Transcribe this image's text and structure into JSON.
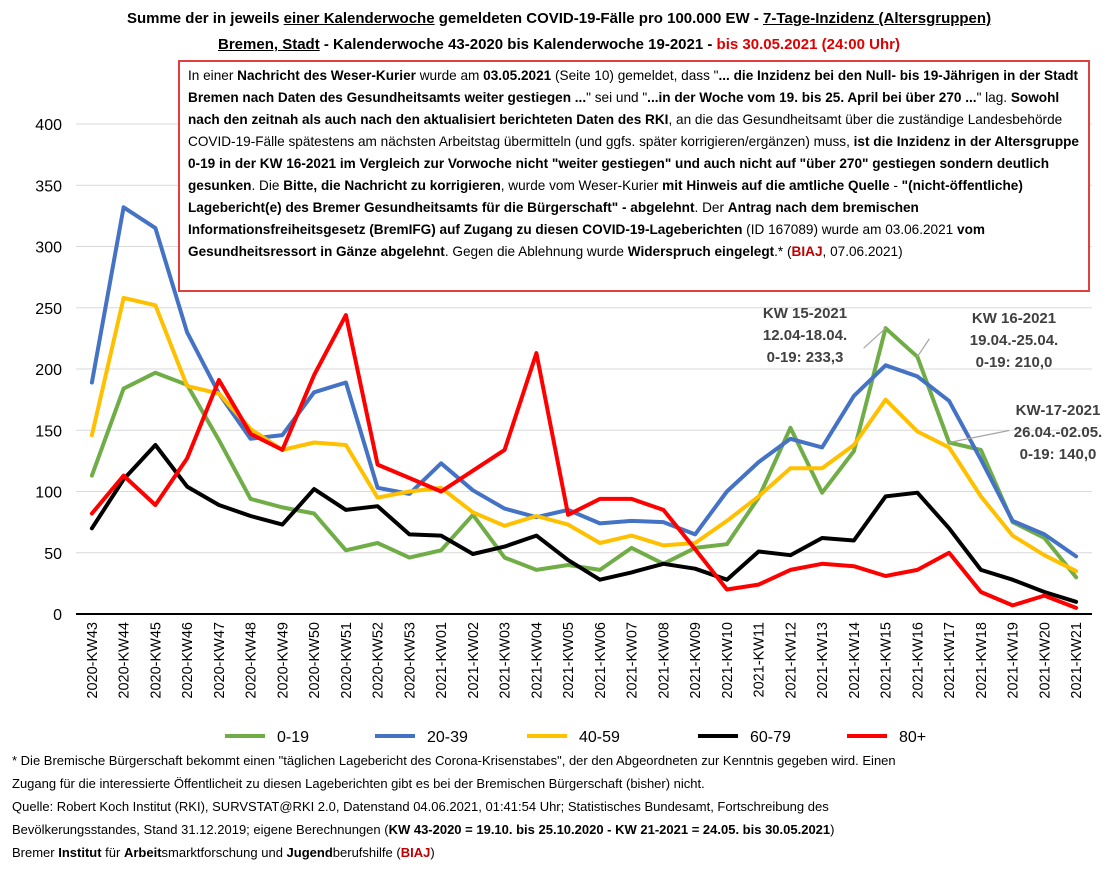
{
  "title": {
    "line1_a": "Summe der in jeweils ",
    "line1_b": "einer Kalenderwoche",
    "line1_c": " gemeldeten COVID-19-Fälle pro 100.000 EW - ",
    "line1_d": "7-Tage-Inzidenz (Altersgruppen)",
    "line2_a": "Bremen, Stadt",
    "line2_b": " -  Kalenderwoche 43-2020 bis Kalenderwoche 19-2021 - ",
    "line2_c": "bis 30.05.2021 (24:00 Uhr)"
  },
  "note": {
    "p01": "In einer  ",
    "p02": "Nachricht des Weser-Kurier",
    "p03": " wurde am ",
    "p04": "03.05.2021",
    "p05": " (Seite 10) gemeldet, dass \"",
    "p06": "... die Inzidenz bei den Null- bis 19-Jährigen in der Stadt Bremen nach Daten des Gesundheitsamts weiter gestiegen ...",
    "p07": "\" sei und \"",
    "p08": "...in der Woche vom 19. bis 25.  April bei über 270 ...",
    "p09": "\" lag. ",
    "p10": "Sowohl nach den zeitnah als auch nach den aktualisiert berichteten Daten des RKI",
    "p11": ", an die das Gesundheitsamt über die zuständige Landesbehörde COVID-19-Fälle spätestens am nächsten Arbeitstag übermitteln (und ggfs. später korrigieren/ergänzen) muss, ",
    "p12": "ist die Inzidenz in der Altersgruppe 0-19 in der KW 16-2021 im Vergleich  zur Vorwoche nicht \"weiter gestiegen\" und auch nicht auf \"über 270\" gestiegen sondern deutlich gesunken",
    "p13": ". Die ",
    "p14": "Bitte, die Nachricht zu korrigieren",
    "p15": ", wurde vom Weser-Kurier ",
    "p16": "mit Hinweis auf die amtliche Quelle",
    "p17": " - ",
    "p18": "\"(nicht-öffentliche) Lagebericht(e) des Bremer Gesundheitsamts für die Bürgerschaft\" - abgelehnt",
    "p19": ". Der ",
    "p20": "Antrag nach dem bremischen Informationsfreiheitsgesetz (BremIFG) auf Zugang zu diesen COVID-19-Lageberichten",
    "p21": " (ID 167089) wurde am 03.06.2021 ",
    "p22": "vom Gesundheitsressort in Gänze abgelehnt",
    "p23": ". Gegen die Ablehnung wurde ",
    "p24": "Widerspruch eingelegt",
    "p25": ".* (",
    "p26": "BIAJ",
    "p27": ", 07.06.2021)"
  },
  "annotations": [
    {
      "lines": [
        "KW 15-2021",
        "12.04-18.04.",
        "0-19: 233,3"
      ]
    },
    {
      "lines": [
        "KW 16-2021",
        "19.04.-25.04.",
        "0-19: 210,0"
      ]
    },
    {
      "lines": [
        "KW-17-2021",
        "26.04.-02.05.",
        "0-19: 140,0"
      ]
    }
  ],
  "footer": {
    "f1": "* Die Bremische Bürgerschaft bekommt einen \"täglichen Lagebericht des Corona-Krisenstabes\", der den Abgeordneten zur Kenntnis gegeben wird. Einen",
    "f2": "Zugang für die interessierte Öffentlicheit zu diesen Lageberichten gibt es bei der Bremischen Bürgerschaft (bisher) nicht.",
    "f3": "Quelle: Robert Koch Institut (RKI), SURVSTAT@RKI 2.0, Datenstand 04.06.2021, 01:41:54 Uhr; Statistisches Bundesamt, Fortschreibung des",
    "f4a": "Bevölkerungsstandes, Stand 31.12.2019; eigene Berechnungen (",
    "f4b": "KW 43-2020 = 19.10. bis 25.10.2020 - KW 21-2021 = 24.05. bis 30.05.2021",
    "f4c": ")",
    "f5a": "Bremer ",
    "f5b": "Institut",
    "f5c": " für ",
    "f5d": "Arbeit",
    "f5e": "smarktforschung und ",
    "f5f": "Jugend",
    "f5g": "berufshilfe (",
    "f5h": "BIAJ",
    "f5i": ")"
  },
  "chart_data": {
    "type": "line",
    "categories": [
      "2020-KW43",
      "2020-KW44",
      "2020-KW45",
      "2020-KW46",
      "2020-KW47",
      "2020-KW48",
      "2020-KW49",
      "2020-KW50",
      "2020-KW51",
      "2020-KW52",
      "2020-KW53",
      "2021-KW01",
      "2021-KW02",
      "2021-KW03",
      "2021-KW04",
      "2021-KW05",
      "2021-KW06",
      "2021-KW07",
      "2021-KW08",
      "2021-KW09",
      "2021-KW10",
      "2021-KW11",
      "2021-KW12",
      "2021-KW13",
      "2021-KW14",
      "2021-KW15",
      "2021-KW16",
      "2021-KW17",
      "2021-KW18",
      "2021-KW19",
      "2021-KW20",
      "2021-KW21"
    ],
    "ylim": [
      0,
      400
    ],
    "yticks": [
      0,
      50,
      100,
      150,
      200,
      250,
      300,
      350,
      400
    ],
    "grid": true,
    "legend_position": "bottom",
    "series": [
      {
        "name": "0-19",
        "color": "#70ad47",
        "values": [
          113,
          184,
          197,
          187,
          142,
          94,
          87,
          82,
          52,
          58,
          46,
          52,
          81,
          46,
          36,
          40,
          36,
          54,
          41,
          54,
          57,
          95,
          152,
          99,
          133,
          233.3,
          210.0,
          140.0,
          134,
          75,
          62,
          30
        ]
      },
      {
        "name": "20-39",
        "color": "#4472c4",
        "values": [
          189,
          332,
          315,
          230,
          180,
          143,
          146,
          181,
          189,
          103,
          98,
          123,
          101,
          86,
          79,
          85,
          74,
          76,
          75,
          65,
          100,
          124,
          143,
          136,
          178,
          203,
          194,
          174,
          126,
          76,
          65,
          47
        ]
      },
      {
        "name": "40-59",
        "color": "#ffc000",
        "values": [
          146,
          258,
          252,
          186,
          180,
          151,
          134,
          140,
          138,
          95,
          100,
          103,
          83,
          72,
          80,
          73,
          58,
          64,
          56,
          58,
          76,
          96,
          119,
          119,
          138,
          175,
          149,
          136,
          96,
          64,
          48,
          35
        ]
      },
      {
        "name": "60-79",
        "color": "#000000",
        "values": [
          70,
          110,
          138,
          104,
          89,
          80,
          73,
          102,
          85,
          88,
          65,
          64,
          49,
          55,
          64,
          44,
          28,
          34,
          41,
          37,
          28,
          51,
          48,
          62,
          60,
          96,
          99,
          70,
          36,
          28,
          18,
          10
        ]
      },
      {
        "name": "80+",
        "color": "#ff0000",
        "values": [
          82,
          113,
          89,
          127,
          191,
          147,
          134,
          195,
          244,
          122,
          111,
          100,
          117,
          134,
          213,
          81,
          94,
          94,
          85,
          53,
          20,
          24,
          36,
          41,
          39,
          31,
          36,
          50,
          18,
          7,
          15,
          5
        ]
      }
    ]
  }
}
